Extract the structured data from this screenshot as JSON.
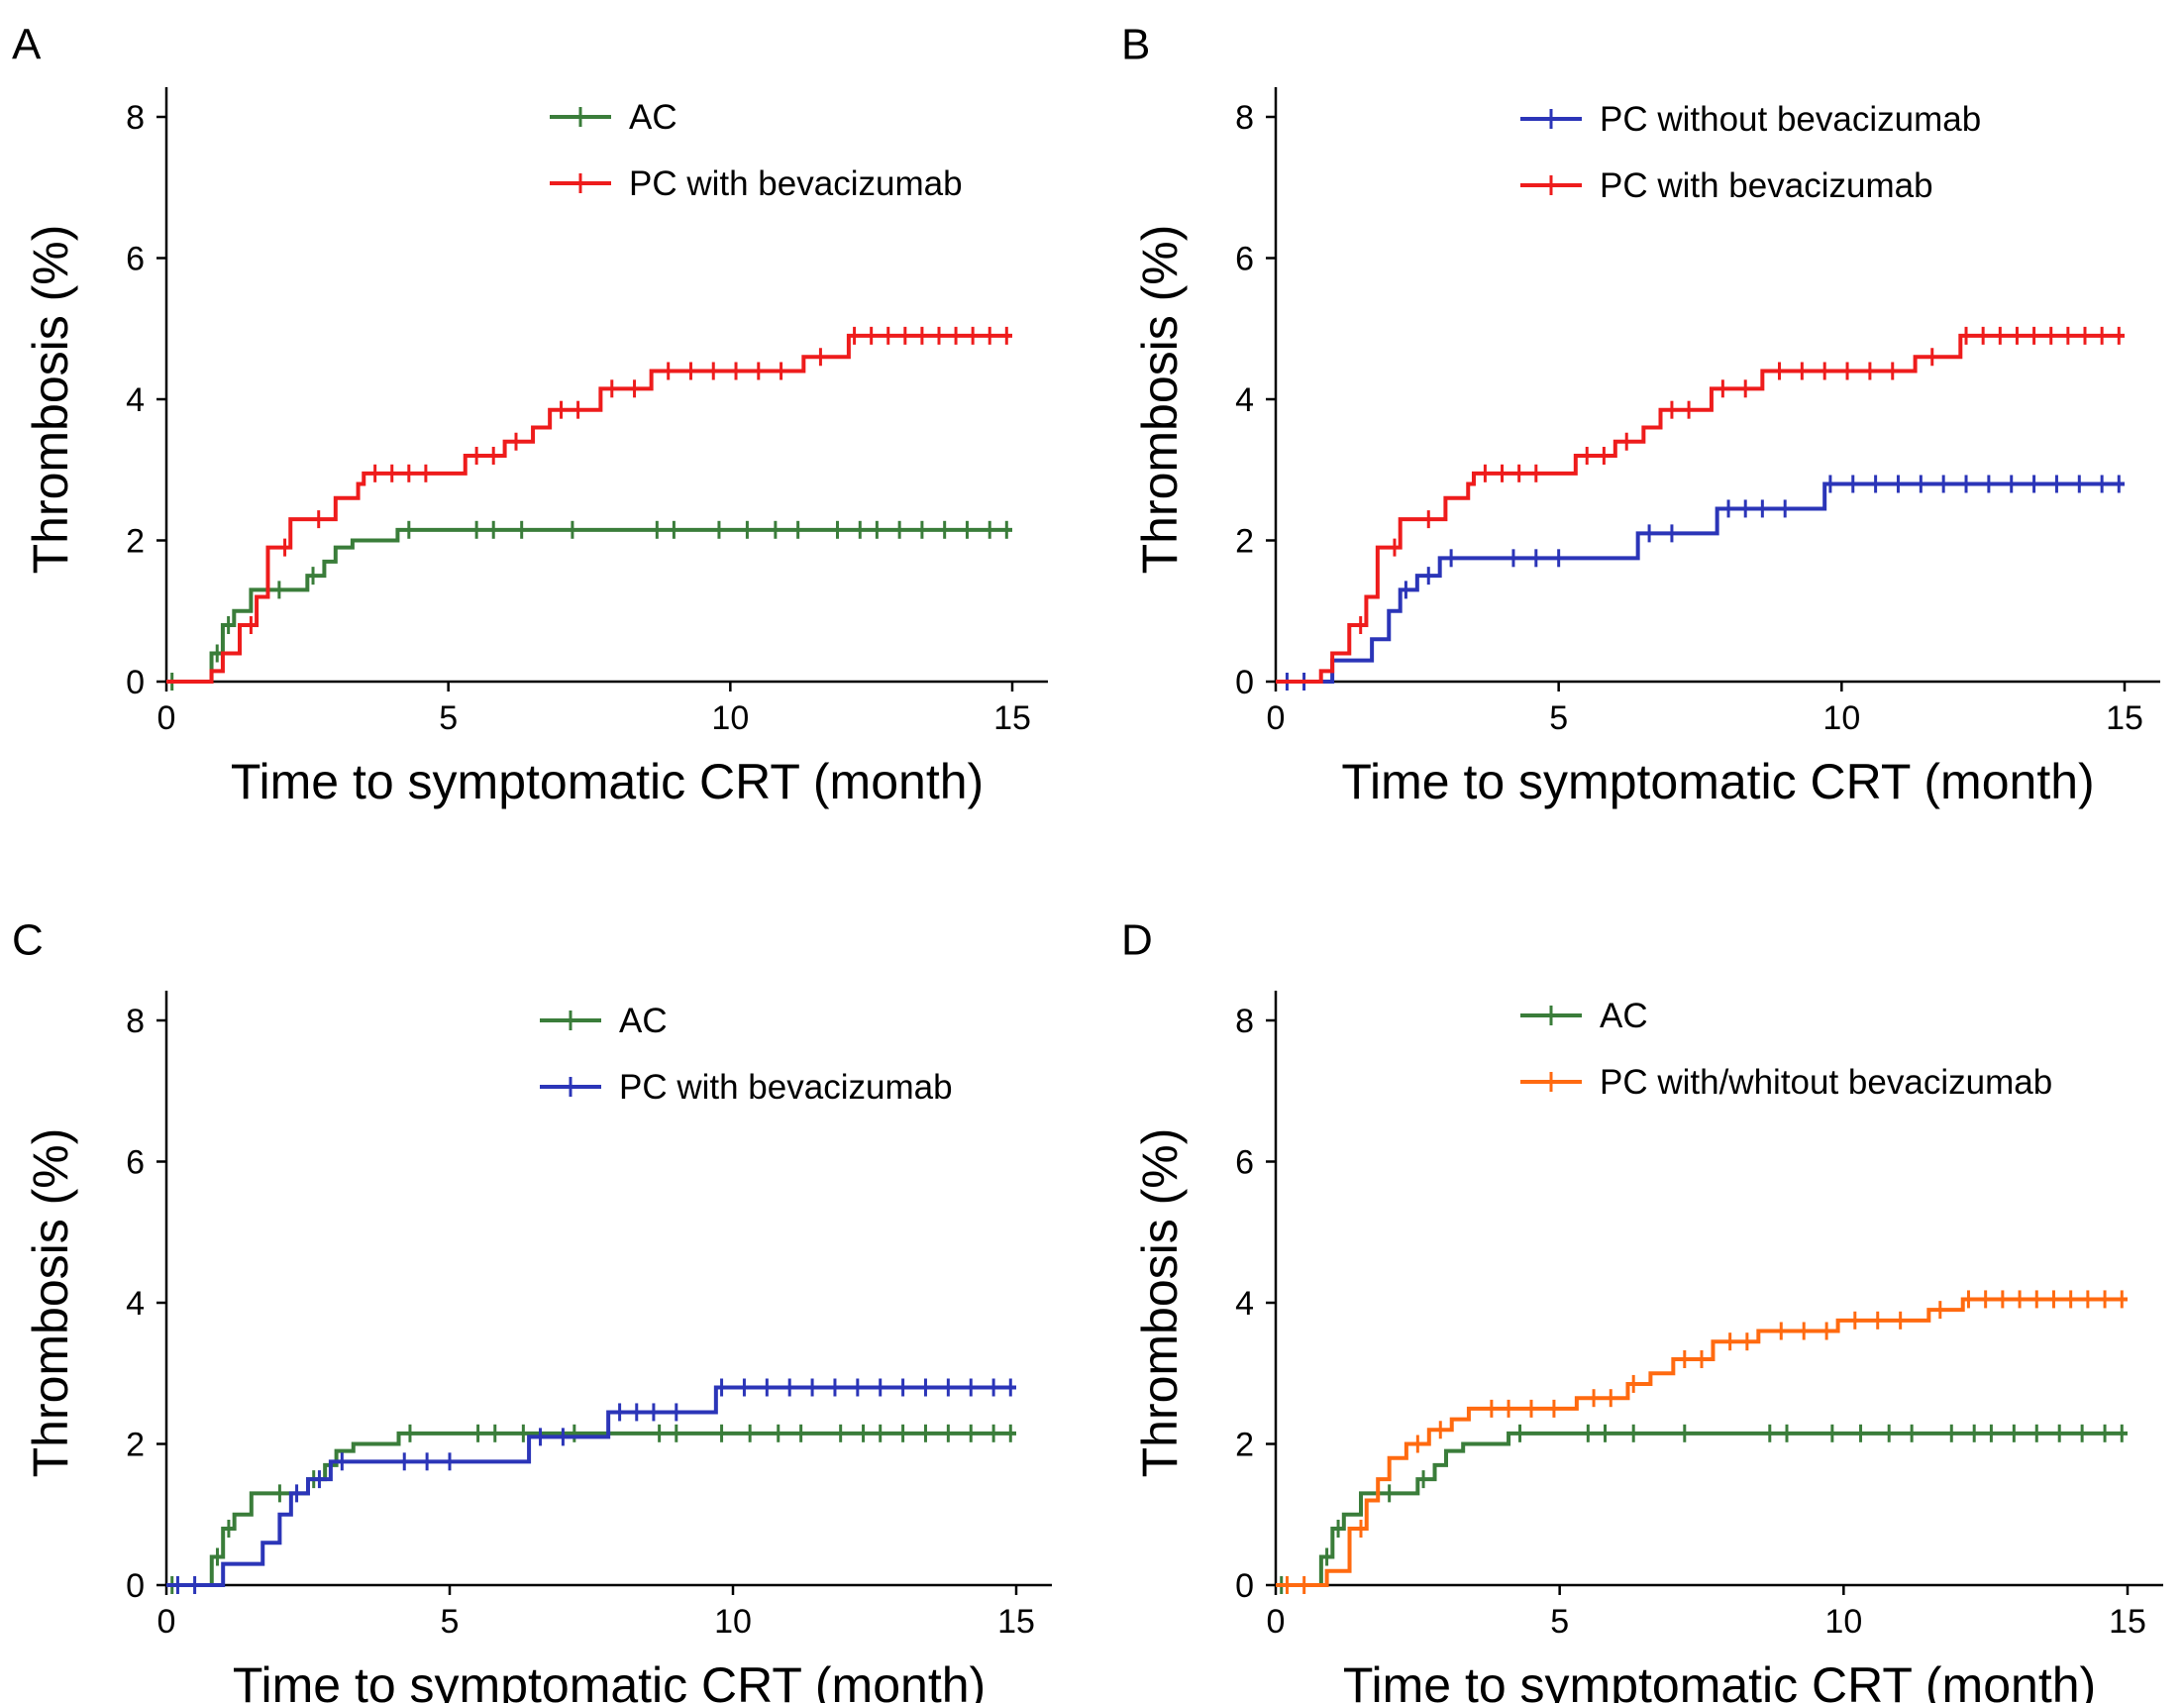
{
  "chart_data": [
    {
      "type": "line",
      "panel": "A",
      "xlabel": "Time to symptomatic CRT (month)",
      "ylabel": "Thrombosis (%)",
      "xlim": [
        0,
        15
      ],
      "ylim": [
        0,
        8
      ],
      "xticks": [
        0,
        5,
        10,
        15
      ],
      "yticks": [
        0,
        2,
        4,
        6,
        8
      ],
      "legend_position": "top-center",
      "grid": false,
      "series": [
        {
          "name": "AC",
          "color": "#3a7d3a",
          "x": [
            0,
            0.8,
            1.0,
            1.2,
            1.5,
            1.8,
            2.5,
            2.8,
            3.0,
            3.3,
            4.1,
            15
          ],
          "y": [
            0,
            0.4,
            0.8,
            1.0,
            1.3,
            1.3,
            1.5,
            1.7,
            1.9,
            2.0,
            2.15,
            2.15
          ],
          "censor": [
            0.1,
            0.9,
            1.1,
            2.0,
            2.6,
            4.3,
            5.5,
            5.8,
            6.3,
            7.2,
            8.7,
            9.0,
            9.8,
            10.3,
            10.8,
            11.2,
            11.9,
            12.3,
            12.6,
            13.0,
            13.4,
            13.8,
            14.2,
            14.6,
            14.9
          ]
        },
        {
          "name": "PC with bevacizumab",
          "color": "#ee1c1c",
          "x": [
            0,
            0.8,
            1.0,
            1.3,
            1.6,
            1.8,
            2.2,
            3.0,
            3.4,
            3.5,
            5.3,
            6.0,
            6.5,
            6.8,
            7.7,
            8.6,
            11.3,
            12.1,
            15
          ],
          "y": [
            0,
            0.15,
            0.4,
            0.8,
            1.2,
            1.9,
            2.3,
            2.6,
            2.8,
            2.95,
            3.2,
            3.4,
            3.6,
            3.85,
            4.15,
            4.4,
            4.6,
            4.9,
            4.9
          ],
          "censor": [
            1.5,
            2.1,
            2.7,
            3.7,
            4.0,
            4.3,
            4.6,
            5.5,
            5.8,
            6.2,
            7.0,
            7.3,
            7.9,
            8.3,
            8.9,
            9.3,
            9.7,
            10.1,
            10.5,
            10.9,
            11.6,
            12.2,
            12.5,
            12.8,
            13.1,
            13.4,
            13.7,
            14.0,
            14.3,
            14.6,
            14.9
          ]
        }
      ]
    },
    {
      "type": "line",
      "panel": "B",
      "xlabel": "Time to symptomatic CRT (month)",
      "ylabel": "Thrombosis (%)",
      "xlim": [
        0,
        15
      ],
      "ylim": [
        0,
        8
      ],
      "xticks": [
        0,
        5,
        10,
        15
      ],
      "yticks": [
        0,
        2,
        4,
        6,
        8
      ],
      "legend_position": "top-center",
      "grid": false,
      "series": [
        {
          "name": "PC without bevacizumab",
          "color": "#2b35b8",
          "x": [
            0,
            1.0,
            1.7,
            2.0,
            2.2,
            2.5,
            2.9,
            3.0,
            6.4,
            7.8,
            9.7,
            15
          ],
          "y": [
            0,
            0.3,
            0.6,
            1.0,
            1.3,
            1.5,
            1.75,
            1.75,
            2.1,
            2.45,
            2.8,
            2.8
          ],
          "censor": [
            0.2,
            0.5,
            2.3,
            2.7,
            3.1,
            4.2,
            4.6,
            5.0,
            6.6,
            7.0,
            8.0,
            8.3,
            8.6,
            9.0,
            9.8,
            10.2,
            10.6,
            11.0,
            11.4,
            11.8,
            12.2,
            12.6,
            13.0,
            13.4,
            13.8,
            14.2,
            14.6,
            14.9
          ]
        },
        {
          "name": "PC with bevacizumab",
          "color": "#ee1c1c",
          "x": [
            0,
            0.8,
            1.0,
            1.3,
            1.6,
            1.8,
            2.2,
            3.0,
            3.4,
            3.5,
            5.3,
            6.0,
            6.5,
            6.8,
            7.7,
            8.6,
            11.3,
            12.1,
            15
          ],
          "y": [
            0,
            0.15,
            0.4,
            0.8,
            1.2,
            1.9,
            2.3,
            2.6,
            2.8,
            2.95,
            3.2,
            3.4,
            3.6,
            3.85,
            4.15,
            4.4,
            4.6,
            4.9,
            4.9
          ],
          "censor": [
            1.5,
            2.1,
            2.7,
            3.7,
            4.0,
            4.3,
            4.6,
            5.5,
            5.8,
            6.2,
            7.0,
            7.3,
            7.9,
            8.3,
            8.9,
            9.3,
            9.7,
            10.1,
            10.5,
            10.9,
            11.6,
            12.2,
            12.5,
            12.8,
            13.1,
            13.4,
            13.7,
            14.0,
            14.3,
            14.6,
            14.9
          ]
        }
      ]
    },
    {
      "type": "line",
      "panel": "C",
      "xlabel": "Time to symptomatic CRT (month)",
      "ylabel": "Thrombosis (%)",
      "xlim": [
        0,
        15
      ],
      "ylim": [
        0,
        8
      ],
      "xticks": [
        0,
        5,
        10,
        15
      ],
      "yticks": [
        0,
        2,
        4,
        6,
        8
      ],
      "legend_position": "top-center",
      "grid": false,
      "series": [
        {
          "name": "AC",
          "color": "#3a7d3a",
          "x": [
            0,
            0.8,
            1.0,
            1.2,
            1.5,
            1.8,
            2.5,
            2.8,
            3.0,
            3.3,
            4.1,
            15
          ],
          "y": [
            0,
            0.4,
            0.8,
            1.0,
            1.3,
            1.3,
            1.5,
            1.7,
            1.9,
            2.0,
            2.15,
            2.15
          ],
          "censor": [
            0.1,
            0.9,
            1.1,
            2.0,
            2.6,
            4.3,
            5.5,
            5.8,
            6.3,
            7.2,
            8.7,
            9.0,
            9.8,
            10.3,
            10.8,
            11.2,
            11.9,
            12.3,
            12.6,
            13.0,
            13.4,
            13.8,
            14.2,
            14.6,
            14.9
          ]
        },
        {
          "name": "PC with bevacizumab",
          "color": "#2b35b8",
          "x": [
            0,
            1.0,
            1.7,
            2.0,
            2.2,
            2.5,
            2.9,
            3.0,
            6.4,
            7.8,
            9.7,
            15
          ],
          "y": [
            0,
            0.3,
            0.6,
            1.0,
            1.3,
            1.5,
            1.75,
            1.75,
            2.1,
            2.45,
            2.8,
            2.8
          ],
          "censor": [
            0.2,
            0.5,
            2.3,
            2.7,
            3.1,
            4.2,
            4.6,
            5.0,
            6.6,
            7.0,
            8.0,
            8.3,
            8.6,
            9.0,
            9.8,
            10.2,
            10.6,
            11.0,
            11.4,
            11.8,
            12.2,
            12.6,
            13.0,
            13.4,
            13.8,
            14.2,
            14.6,
            14.9
          ]
        }
      ]
    },
    {
      "type": "line",
      "panel": "D",
      "xlabel": "Time to symptomatic CRT (month)",
      "ylabel": "Thrombosis (%)",
      "xlim": [
        0,
        15
      ],
      "ylim": [
        0,
        8
      ],
      "xticks": [
        0,
        5,
        10,
        15
      ],
      "yticks": [
        0,
        2,
        4,
        6,
        8
      ],
      "legend_position": "top-center",
      "grid": false,
      "series": [
        {
          "name": "AC",
          "color": "#3a7d3a",
          "x": [
            0,
            0.8,
            1.0,
            1.2,
            1.5,
            1.8,
            2.5,
            2.8,
            3.0,
            3.3,
            4.1,
            15
          ],
          "y": [
            0,
            0.4,
            0.8,
            1.0,
            1.3,
            1.3,
            1.5,
            1.7,
            1.9,
            2.0,
            2.15,
            2.15
          ],
          "censor": [
            0.1,
            0.9,
            1.1,
            2.0,
            2.6,
            4.3,
            5.5,
            5.8,
            6.3,
            7.2,
            8.7,
            9.0,
            9.8,
            10.3,
            10.8,
            11.2,
            11.9,
            12.3,
            12.6,
            13.0,
            13.4,
            13.8,
            14.2,
            14.6,
            14.9
          ]
        },
        {
          "name": "PC with/whitout bevacizumab",
          "color": "#ff6a10",
          "x": [
            0,
            0.9,
            1.3,
            1.6,
            1.8,
            2.0,
            2.3,
            2.7,
            3.1,
            3.4,
            3.6,
            5.3,
            6.2,
            6.6,
            7.0,
            7.7,
            8.5,
            9.9,
            11.5,
            12.1,
            15
          ],
          "y": [
            0,
            0.2,
            0.8,
            1.2,
            1.5,
            1.8,
            2.0,
            2.2,
            2.35,
            2.5,
            2.5,
            2.65,
            2.85,
            3.0,
            3.2,
            3.45,
            3.6,
            3.75,
            3.9,
            4.05,
            4.05
          ],
          "censor": [
            0.2,
            0.5,
            1.5,
            2.5,
            2.9,
            3.8,
            4.1,
            4.5,
            4.9,
            5.6,
            5.9,
            6.3,
            7.2,
            7.5,
            8.0,
            8.3,
            8.9,
            9.3,
            9.7,
            10.2,
            10.6,
            11.0,
            11.7,
            12.2,
            12.5,
            12.8,
            13.1,
            13.4,
            13.7,
            14.0,
            14.3,
            14.6,
            14.9
          ]
        }
      ]
    }
  ]
}
